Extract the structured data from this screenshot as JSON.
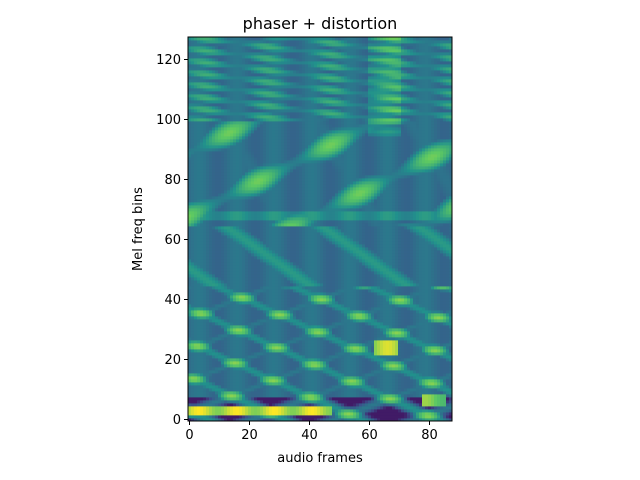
{
  "chart_data": {
    "type": "heatmap",
    "title": "phaser + distortion",
    "xlabel": "audio frames",
    "ylabel": "Mel freq bins",
    "xlim": [
      -0.5,
      87.5
    ],
    "ylim": [
      -0.5,
      127.5
    ],
    "x_ticks": [
      0,
      20,
      40,
      60,
      80
    ],
    "y_ticks": [
      0,
      20,
      40,
      60,
      80,
      100,
      120
    ],
    "n_frames": 88,
    "n_mels": 128,
    "colormap": "viridis",
    "value_range": [
      0,
      1
    ],
    "features": [
      {
        "name": "low sustained band",
        "mel_range": [
          2,
          5
        ],
        "frame_range": [
          0,
          48
        ],
        "level": 1.0
      },
      {
        "name": "bright burst",
        "mel_range": [
          22,
          27
        ],
        "frame_range": [
          62,
          70
        ],
        "level": 0.95
      },
      {
        "name": "bright burst",
        "mel_range": [
          5,
          9
        ],
        "frame_range": [
          78,
          86
        ],
        "level": 0.85
      },
      {
        "name": "sustained band",
        "mel_range": [
          67,
          70
        ],
        "frame_range": [
          0,
          88
        ],
        "level": 0.55
      },
      {
        "name": "sweep region",
        "mel_range": [
          8,
          128
        ],
        "frame_range": [
          0,
          88
        ],
        "level": 0.4
      }
    ]
  }
}
